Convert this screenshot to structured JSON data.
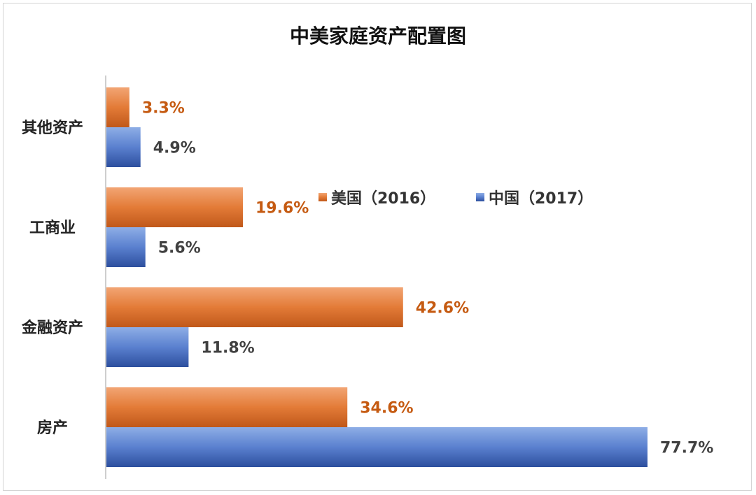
{
  "chart_data": {
    "type": "bar",
    "orientation": "horizontal",
    "title": "中美家庭资产配置图",
    "categories": [
      "其他资产",
      "工商业",
      "金融资产",
      "房产"
    ],
    "series": [
      {
        "name": "美国（2016）",
        "color": "#d4601a",
        "values": [
          3.3,
          19.6,
          42.6,
          34.6
        ],
        "labels": [
          "3.3%",
          "19.6%",
          "42.6%",
          "34.6%"
        ]
      },
      {
        "name": "中国（2017）",
        "color": "#3b63b8",
        "values": [
          4.9,
          5.6,
          11.8,
          77.7
        ],
        "labels": [
          "4.9%",
          "5.6%",
          "11.8%",
          "77.7%"
        ]
      }
    ],
    "xlim": [
      0,
      80
    ],
    "grid": false,
    "legend_position": "top-right"
  }
}
